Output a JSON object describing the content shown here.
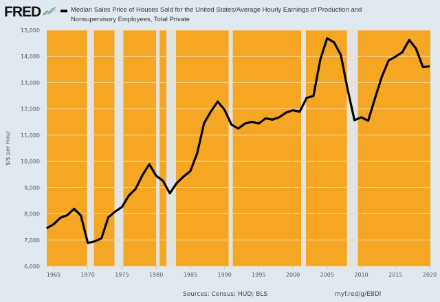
{
  "header": {
    "logo": "FRED",
    "series_title": "Median Sales Price of Houses Sold for the United States/Average Hourly Earnings of Production and Nonsupervisory Employees, Total Private"
  },
  "footer": {
    "sources": "Sources: Census; HUD; BLS",
    "url": "myf.red/g/EBDl"
  },
  "chart_data": {
    "type": "line",
    "title": "",
    "ylabel": "$/$ per Hour",
    "xlabel": "",
    "xlim": [
      1964,
      2020.1
    ],
    "ylim": [
      6000,
      15000
    ],
    "grid": true,
    "x_ticks": [
      "1965",
      "1970",
      "1975",
      "1980",
      "1985",
      "1990",
      "1995",
      "2000",
      "2005",
      "2010",
      "2015",
      "2020"
    ],
    "y_ticks": [
      "6,000",
      "7,000",
      "8,000",
      "9,000",
      "10,000",
      "11,000",
      "12,000",
      "13,000",
      "14,000",
      "15,000"
    ],
    "colors": {
      "background_bands": "#f5a623",
      "recession_gaps": "#e3e3e3",
      "line": "#000000",
      "page": "#e1e9f0"
    },
    "recessions": [
      [
        1969.9,
        1970.9
      ],
      [
        1973.9,
        1975.2
      ],
      [
        1980.0,
        1980.5
      ],
      [
        1981.5,
        1982.9
      ],
      [
        1990.6,
        1991.2
      ],
      [
        2001.2,
        2001.9
      ],
      [
        2007.9,
        2009.5
      ]
    ],
    "series": [
      {
        "name": "Median Sales Price of Houses Sold for the United States/Average Hourly Earnings of Production and Nonsupervisory Employees, Total Private",
        "x": [
          1964,
          1965,
          1966,
          1967,
          1968,
          1969,
          1970,
          1971,
          1972,
          1973,
          1974,
          1975,
          1976,
          1977,
          1978,
          1979,
          1980,
          1981,
          1982,
          1983,
          1984,
          1985,
          1986,
          1987,
          1988,
          1989,
          1990,
          1991,
          1992,
          1993,
          1994,
          1995,
          1996,
          1997,
          1998,
          1999,
          2000,
          2001,
          2002,
          2003,
          2004,
          2005,
          2006,
          2007,
          2008,
          2009,
          2010,
          2011,
          2012,
          2013,
          2014,
          2015,
          2016,
          2017,
          2018,
          2019,
          2020
        ],
        "y": [
          7450,
          7600,
          7850,
          7950,
          8190,
          7935,
          6890,
          6950,
          7065,
          7865,
          8085,
          8260,
          8695,
          8955,
          9480,
          9890,
          9450,
          9260,
          8780,
          9170,
          9420,
          9630,
          10310,
          11450,
          11900,
          12280,
          11965,
          11400,
          11250,
          11440,
          11510,
          11440,
          11640,
          11590,
          11680,
          11860,
          11950,
          11895,
          12420,
          12490,
          13880,
          14690,
          14540,
          14060,
          12750,
          11570,
          11680,
          11550,
          12400,
          13230,
          13850,
          13990,
          14160,
          14625,
          14300,
          13600,
          13620
        ]
      }
    ]
  }
}
